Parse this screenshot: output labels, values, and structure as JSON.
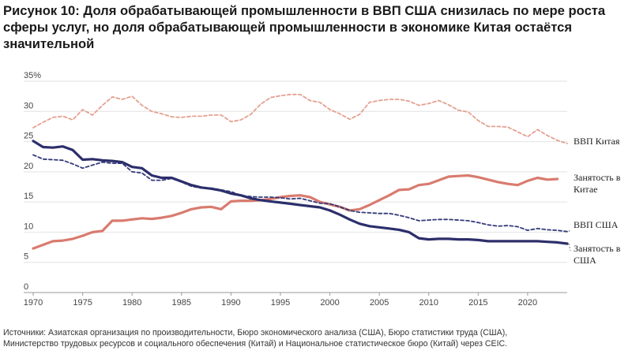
{
  "title": {
    "lead": "Рисунок 10:",
    "text": "Доля обрабатывающей промышленности в ВВП США снизилась по мере роста сферы услуг, но доля обрабатывающей промышленности в экономике Китая остаётся значительной"
  },
  "source": {
    "line1": "Источники: Азиатская организация по производительности, Бюро экономического анализа (США), Бюро статистики труда (США),",
    "line2": "Министерство трудовых ресурсов и социального обеспечения (Китай) и Национальное статистическое бюро (Китай) через CEIC."
  },
  "chart_data": {
    "type": "line",
    "xlim": [
      1970,
      2024
    ],
    "ylim": [
      0,
      35
    ],
    "x_ticks": [
      1970,
      1975,
      1980,
      1985,
      1990,
      1995,
      2000,
      2005,
      2010,
      2015,
      2020
    ],
    "y_ticks": [
      0,
      5,
      10,
      15,
      20,
      25,
      30,
      35
    ],
    "y_tick_labels": [
      "0",
      "5",
      "10",
      "15",
      "20",
      "25",
      "30",
      "35%"
    ],
    "grid": "horizontal",
    "series": [
      {
        "name": "ВВП Китая",
        "label_lines": [
          "ВВП Китая"
        ],
        "color": "#e4a090",
        "style": "dashed",
        "x": [
          1970,
          1971,
          1972,
          1973,
          1974,
          1975,
          1976,
          1977,
          1978,
          1979,
          1980,
          1981,
          1982,
          1983,
          1984,
          1985,
          1986,
          1987,
          1988,
          1989,
          1990,
          1991,
          1992,
          1993,
          1994,
          1995,
          1996,
          1997,
          1998,
          1999,
          2000,
          2001,
          2002,
          2003,
          2004,
          2005,
          2006,
          2007,
          2008,
          2009,
          2010,
          2011,
          2012,
          2013,
          2014,
          2015,
          2016,
          2017,
          2018,
          2019,
          2020,
          2021,
          2022,
          2023,
          2024
        ],
        "values": [
          27.3,
          28.2,
          29.0,
          29.2,
          28.6,
          30.3,
          29.4,
          31.0,
          32.4,
          32.0,
          32.5,
          31.0,
          30.0,
          29.6,
          29.1,
          29.0,
          29.2,
          29.2,
          29.4,
          29.4,
          28.3,
          28.6,
          29.5,
          31.2,
          32.3,
          32.6,
          32.8,
          32.8,
          31.8,
          31.5,
          30.3,
          29.6,
          28.7,
          29.5,
          31.5,
          31.8,
          32.0,
          32.0,
          31.7,
          31.0,
          31.3,
          31.8,
          31.1,
          30.2,
          29.9,
          28.5,
          27.5,
          27.5,
          27.4,
          26.6,
          25.8,
          27.0,
          26.0,
          25.2,
          24.7
        ]
      },
      {
        "name": "Занятость в Китае",
        "label_lines": [
          "Занятость в",
          "Китае"
        ],
        "color": "#d97b6f",
        "style": "solid",
        "x": [
          1970,
          1971,
          1972,
          1973,
          1974,
          1975,
          1976,
          1977,
          1978,
          1979,
          1980,
          1981,
          1982,
          1983,
          1984,
          1985,
          1986,
          1987,
          1988,
          1989,
          1990,
          1991,
          1992,
          1993,
          1994,
          1995,
          1996,
          1997,
          1998,
          1999,
          2000,
          2001,
          2002,
          2003,
          2004,
          2005,
          2006,
          2007,
          2008,
          2009,
          2010,
          2011,
          2012,
          2013,
          2014,
          2015,
          2016,
          2017,
          2018,
          2019,
          2020,
          2021,
          2022,
          2023
        ],
        "values": [
          7.3,
          7.9,
          8.5,
          8.6,
          8.9,
          9.4,
          10.0,
          10.2,
          11.9,
          11.9,
          12.1,
          12.3,
          12.2,
          12.4,
          12.7,
          13.2,
          13.8,
          14.1,
          14.2,
          13.8,
          15.1,
          15.2,
          15.2,
          15.3,
          15.5,
          15.8,
          16.0,
          16.1,
          15.8,
          15.0,
          14.6,
          14.2,
          13.6,
          13.8,
          14.5,
          15.3,
          16.1,
          17.0,
          17.1,
          17.8,
          18.0,
          18.6,
          19.2,
          19.3,
          19.4,
          19.1,
          18.7,
          18.3,
          18.0,
          17.8,
          18.5,
          19.0,
          18.7,
          18.8
        ]
      },
      {
        "name": "ВВП США",
        "label_lines": [
          "ВВП США"
        ],
        "color": "#343a7a",
        "style": "dashed",
        "x": [
          1970,
          1971,
          1972,
          1973,
          1974,
          1975,
          1976,
          1977,
          1978,
          1979,
          1980,
          1981,
          1982,
          1983,
          1984,
          1985,
          1986,
          1987,
          1988,
          1989,
          1990,
          1991,
          1992,
          1993,
          1994,
          1995,
          1996,
          1997,
          1998,
          1999,
          2000,
          2001,
          2002,
          2003,
          2004,
          2005,
          2006,
          2007,
          2008,
          2009,
          2010,
          2011,
          2012,
          2013,
          2014,
          2015,
          2016,
          2017,
          2018,
          2019,
          2020,
          2021,
          2022,
          2023,
          2024
        ],
        "values": [
          22.8,
          22.1,
          22.0,
          21.9,
          21.3,
          20.6,
          21.1,
          21.6,
          21.4,
          21.4,
          20.0,
          19.8,
          18.6,
          18.6,
          18.9,
          18.3,
          17.6,
          17.3,
          17.3,
          17.0,
          16.7,
          16.1,
          15.9,
          15.8,
          15.8,
          15.7,
          15.5,
          15.6,
          15.2,
          14.8,
          14.7,
          14.2,
          13.6,
          13.3,
          13.2,
          13.1,
          13.1,
          12.8,
          12.4,
          11.9,
          12.0,
          12.1,
          12.1,
          12.0,
          11.9,
          11.6,
          11.2,
          11.0,
          11.1,
          10.9,
          10.3,
          10.6,
          10.4,
          10.3,
          10.1
        ]
      },
      {
        "name": "Занятость в США",
        "label_lines": [
          "Занятость в",
          "США"
        ],
        "color": "#2c2e6b",
        "style": "solid",
        "x": [
          1970,
          1971,
          1972,
          1973,
          1974,
          1975,
          1976,
          1977,
          1978,
          1979,
          1980,
          1981,
          1982,
          1983,
          1984,
          1985,
          1986,
          1987,
          1988,
          1989,
          1990,
          1991,
          1992,
          1993,
          1994,
          1995,
          1996,
          1997,
          1998,
          1999,
          2000,
          2001,
          2002,
          2003,
          2004,
          2005,
          2006,
          2007,
          2008,
          2009,
          2010,
          2011,
          2012,
          2013,
          2014,
          2015,
          2016,
          2017,
          2018,
          2019,
          2020,
          2021,
          2022,
          2023,
          2024
        ],
        "values": [
          25.1,
          24.1,
          24.0,
          24.2,
          23.6,
          22.0,
          22.1,
          21.9,
          21.8,
          21.6,
          20.8,
          20.6,
          19.4,
          19.0,
          19.0,
          18.4,
          17.8,
          17.4,
          17.2,
          16.9,
          16.4,
          16.1,
          15.6,
          15.3,
          15.1,
          14.9,
          14.7,
          14.5,
          14.3,
          14.1,
          13.6,
          12.9,
          12.1,
          11.4,
          11.0,
          10.8,
          10.6,
          10.4,
          10.0,
          9.0,
          8.8,
          8.9,
          8.9,
          8.8,
          8.8,
          8.7,
          8.5,
          8.5,
          8.5,
          8.5,
          8.5,
          8.5,
          8.4,
          8.3,
          8.1
        ]
      }
    ]
  }
}
